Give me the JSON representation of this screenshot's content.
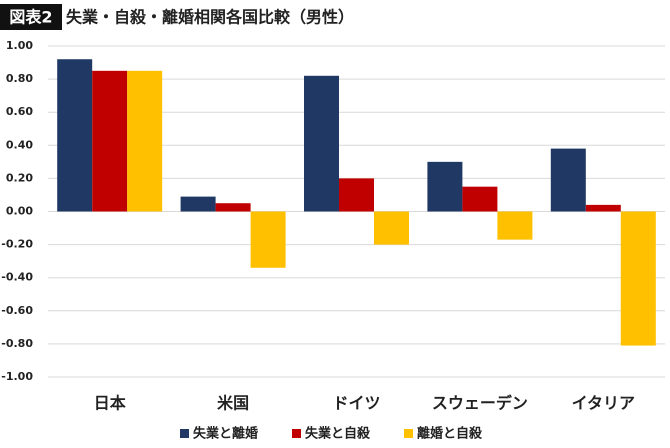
{
  "chart_data": {
    "type": "bar",
    "figure_label": "図表2",
    "title": "失業・自殺・離婚相関各国比較（男性）",
    "categories": [
      "日本",
      "米国",
      "ドイツ",
      "スウェーデン",
      "イタリア"
    ],
    "series": [
      {
        "name": "失業と離婚",
        "color": "#1f3864",
        "values": [
          0.92,
          0.09,
          0.82,
          0.3,
          0.38
        ]
      },
      {
        "name": "失業と自殺",
        "color": "#c00000",
        "values": [
          0.85,
          0.05,
          0.2,
          0.15,
          0.04
        ]
      },
      {
        "name": "離婚と自殺",
        "color": "#ffc000",
        "values": [
          0.85,
          -0.34,
          -0.2,
          -0.17,
          -0.81
        ]
      }
    ],
    "ylim": [
      -1,
      1
    ],
    "yticks": [
      {
        "value": 1,
        "label": "1.00"
      },
      {
        "value": 0.8,
        "label": "0.80"
      },
      {
        "value": 0.6,
        "label": "0.60"
      },
      {
        "value": 0.4,
        "label": "0.40"
      },
      {
        "value": 0.2,
        "label": "0.20"
      },
      {
        "value": 0,
        "label": "0.00"
      },
      {
        "value": -0.2,
        "label": "-0.20"
      },
      {
        "value": -0.4,
        "label": "-0.40"
      },
      {
        "value": -0.6,
        "label": "-0.60"
      },
      {
        "value": -0.8,
        "label": "-0.80"
      },
      {
        "value": -1,
        "label": "-1.00"
      }
    ],
    "grid": true
  }
}
